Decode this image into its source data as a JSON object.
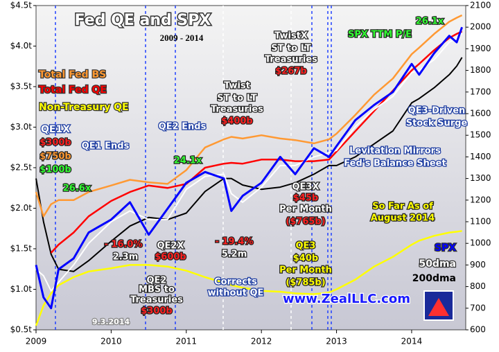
{
  "chart_data": {
    "type": "line",
    "title": "Fed QE and SPX",
    "subtitle": "2009 - 2014",
    "x": [
      2009,
      2009.1,
      2009.2,
      2009.3,
      2009.5,
      2009.7,
      2010,
      2010.25,
      2010.5,
      2010.75,
      2011,
      2011.25,
      2011.5,
      2011.6,
      2011.75,
      2012,
      2012.25,
      2012.45,
      2012.7,
      2012.9,
      2013,
      2013.25,
      2013.5,
      2013.75,
      2014,
      2014.1,
      2014.3,
      2014.5,
      2014.6,
      2014.67
    ],
    "xlim": [
      2009,
      2014.72
    ],
    "xticks": [
      2009,
      2010,
      2011,
      2012,
      2013,
      2014
    ],
    "ylim": [
      0.5,
      4.5
    ],
    "yticks": [
      {
        "value": 0.5,
        "label": "$0.5t"
      },
      {
        "value": 1.0,
        "label": "$1.0t"
      },
      {
        "value": 1.5,
        "label": "$1.5t"
      },
      {
        "value": 2.0,
        "label": "$2.0t"
      },
      {
        "value": 2.5,
        "label": "$2.5t"
      },
      {
        "value": 3.0,
        "label": "$3.0t"
      },
      {
        "value": 3.5,
        "label": "$3.5t"
      },
      {
        "value": 4.0,
        "label": "$4.0t"
      },
      {
        "value": 4.5,
        "label": "$4.5t"
      }
    ],
    "y2lim": [
      600,
      2100
    ],
    "y2ticks": [
      600,
      700,
      800,
      900,
      1000,
      1100,
      1200,
      1300,
      1400,
      1500,
      1600,
      1700,
      1800,
      1900,
      2000,
      2100
    ],
    "series": [
      {
        "name": "Total Fed BS",
        "color": "#ff9933",
        "axis": "y",
        "values": [
          2.2,
          1.9,
          2.05,
          2.1,
          2.1,
          2.2,
          2.28,
          2.35,
          2.32,
          2.3,
          2.47,
          2.75,
          2.85,
          2.88,
          2.86,
          2.9,
          2.86,
          2.84,
          2.8,
          2.85,
          2.92,
          3.15,
          3.4,
          3.6,
          3.9,
          3.98,
          4.15,
          4.3,
          4.35,
          4.38
        ]
      },
      {
        "name": "Total Fed QE",
        "color": "#ff0000",
        "axis": "y",
        "values": [
          null,
          null,
          1.45,
          1.55,
          1.7,
          1.9,
          2.09,
          2.2,
          2.28,
          2.25,
          2.3,
          2.5,
          2.55,
          2.56,
          2.55,
          2.6,
          2.6,
          2.58,
          2.58,
          2.6,
          2.7,
          2.95,
          3.2,
          3.45,
          3.7,
          3.78,
          3.95,
          4.1,
          4.15,
          4.18
        ]
      },
      {
        "name": "Non-Treasury QE",
        "color": "#ffff00",
        "axis": "y",
        "values": [
          0.55,
          0.8,
          0.95,
          1.05,
          1.15,
          1.22,
          1.26,
          1.3,
          1.3,
          1.28,
          1.23,
          1.15,
          1.08,
          1.05,
          1.02,
          0.98,
          0.97,
          0.95,
          0.94,
          0.96,
          1.0,
          1.12,
          1.28,
          1.4,
          1.55,
          1.6,
          1.66,
          1.7,
          1.71,
          1.72
        ]
      },
      {
        "name": "SPX",
        "color": "#0000ff",
        "axis": "y2",
        "values": [
          900,
          750,
          700,
          880,
          930,
          1050,
          1110,
          1190,
          1040,
          1160,
          1280,
          1330,
          1300,
          1150,
          1220,
          1280,
          1400,
          1320,
          1440,
          1400,
          1450,
          1570,
          1640,
          1700,
          1830,
          1780,
          1880,
          1960,
          1930,
          2000
        ]
      },
      {
        "name": "50dma",
        "color": "#ffffff",
        "axis": "y2",
        "values": [
          880,
          850,
          780,
          820,
          900,
          1000,
          1100,
          1150,
          1110,
          1110,
          1250,
          1310,
          1320,
          1230,
          1190,
          1260,
          1360,
          1360,
          1400,
          1420,
          1430,
          1540,
          1620,
          1680,
          1790,
          1800,
          1850,
          1930,
          1950,
          1970
        ]
      },
      {
        "name": "200dma",
        "color": "#000000",
        "axis": "y2",
        "values": [
          1300,
          1100,
          950,
          880,
          870,
          920,
          1010,
          1080,
          1120,
          1110,
          1140,
          1240,
          1300,
          1300,
          1270,
          1250,
          1260,
          1280,
          1320,
          1360,
          1360,
          1400,
          1460,
          1520,
          1650,
          1670,
          1720,
          1780,
          1820,
          1860
        ]
      }
    ],
    "annotations": [
      "QE1X",
      "$300b",
      "$750b",
      "$100b",
      "QE1 Ends",
      "QE2 Ends",
      "Twist",
      "ST to LT",
      "Treasuries",
      "$400b",
      "TwistX",
      "ST to LT",
      "Treasuries",
      "$267b",
      "SPX TTM P/E",
      "26.1x",
      "24.1x",
      "26.6x",
      "Levitation Mirrors",
      "Fed's Balance Sheet",
      "QE3-Driven",
      "Stock Surge",
      "QE3X",
      "$45b",
      "Per Month",
      "($765b)",
      "So Far As of",
      "August 2014",
      "- 16.0%",
      "2.3m",
      "QE2X",
      "$600b",
      "- 19.4%",
      "5.2m",
      "QE3",
      "$40b",
      "Per Month",
      "($785b)",
      "QE2",
      "MBS to",
      "Treasuries",
      "$300b",
      "Corrects",
      "without QE",
      "www.ZealLLC.com",
      "9.3.2014"
    ]
  }
}
